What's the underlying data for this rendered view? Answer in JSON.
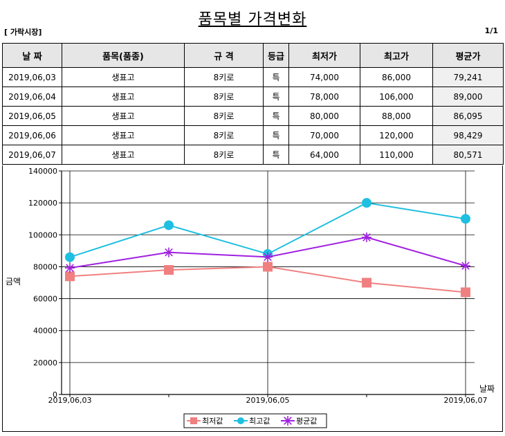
{
  "header": {
    "title": "품목별 가격변화",
    "market": "[ 가락시장]",
    "page": "1/1"
  },
  "table": {
    "columns": [
      "날  짜",
      "품목(품종)",
      "규  격",
      "등급",
      "최저가",
      "최고가",
      "평균가"
    ],
    "rows": [
      [
        "2019,06,03",
        "생표고",
        "8키로",
        "특",
        "74,000",
        "86,000",
        "79,241"
      ],
      [
        "2019,06,04",
        "생표고",
        "8키로",
        "특",
        "78,000",
        "106,000",
        "89,000"
      ],
      [
        "2019,06,05",
        "생표고",
        "8키로",
        "특",
        "80,000",
        "88,000",
        "86,095"
      ],
      [
        "2019,06,06",
        "생표고",
        "8키로",
        "특",
        "70,000",
        "120,000",
        "98,429"
      ],
      [
        "2019,06,07",
        "생표고",
        "8키로",
        "특",
        "64,000",
        "110,000",
        "80,571"
      ]
    ]
  },
  "chart_data": {
    "type": "line",
    "x": [
      "2019,06,03",
      "2019,06,04",
      "2019,06,05",
      "2019,06,06",
      "2019,06,07"
    ],
    "x_tick_labels": [
      "2019,06,03",
      "2019,06,05",
      "2019,06,07"
    ],
    "ylabel": "금액",
    "xlabel": "날짜",
    "ylim": [
      0,
      140000
    ],
    "y_ticks": [
      "0",
      "20000",
      "40000",
      "60000",
      "80000",
      "100000",
      "120000",
      "140000"
    ],
    "grid": true,
    "legend": "bottom-center",
    "series": [
      {
        "name": "최저값",
        "values": [
          74000,
          78000,
          80000,
          70000,
          64000
        ],
        "color": "#f08080",
        "marker": "square"
      },
      {
        "name": "최고값",
        "values": [
          86000,
          106000,
          88000,
          120000,
          110000
        ],
        "color": "#1ebfe0",
        "marker": "circle"
      },
      {
        "name": "평균값",
        "values": [
          79241,
          89000,
          86095,
          98429,
          80571
        ],
        "color": "#a020e0",
        "marker": "star"
      }
    ]
  }
}
